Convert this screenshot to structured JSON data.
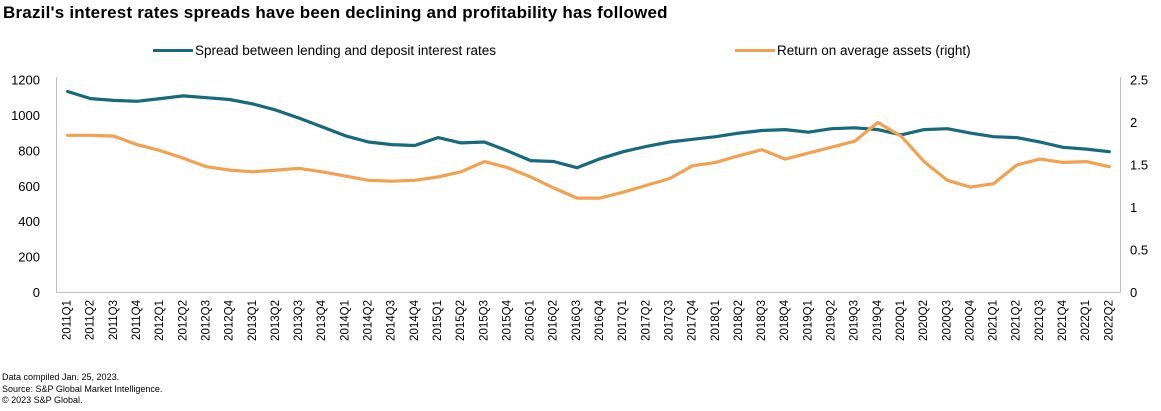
{
  "title": "Brazil's interest rates spreads have been declining and profitability has followed",
  "footer": {
    "line1": "Data compiled Jan. 25, 2023.",
    "line2": "Source: S&P Global Market Intelligence.",
    "line3": "© 2023 S&P Global."
  },
  "chart_data": {
    "type": "line",
    "categories": [
      "2011Q1",
      "2011Q2",
      "2011Q3",
      "2011Q4",
      "2012Q1",
      "2012Q2",
      "2012Q3",
      "2012Q4",
      "2013Q1",
      "2013Q2",
      "2013Q3",
      "2013Q4",
      "2014Q1",
      "2014Q2",
      "2014Q3",
      "2014Q4",
      "2015Q1",
      "2015Q2",
      "2015Q3",
      "2015Q4",
      "2016Q1",
      "2016Q2",
      "2016Q3",
      "2016Q4",
      "2017Q1",
      "2017Q2",
      "2017Q3",
      "2017Q4",
      "2018Q1",
      "2018Q2",
      "2018Q3",
      "2018Q4",
      "2019Q1",
      "2019Q2",
      "2019Q3",
      "2019Q4",
      "2020Q1",
      "2020Q2",
      "2020Q3",
      "2020Q4",
      "2021Q1",
      "2021Q2",
      "2021Q3",
      "2021Q4",
      "2022Q1",
      "2022Q2"
    ],
    "series": [
      {
        "name": "Spread between lending and deposit interest rates",
        "axis": "left",
        "color": "#176A7E",
        "values": [
          1135,
          1095,
          1085,
          1080,
          1095,
          1110,
          1100,
          1090,
          1065,
          1030,
          985,
          935,
          885,
          850,
          835,
          830,
          875,
          845,
          850,
          800,
          745,
          740,
          705,
          755,
          795,
          825,
          850,
          865,
          880,
          900,
          915,
          920,
          905,
          925,
          930,
          920,
          890,
          920,
          925,
          900,
          880,
          875,
          850,
          820,
          810,
          795
        ]
      },
      {
        "name": "Return on average assets (right)",
        "axis": "right",
        "color": "#F2A150",
        "values": [
          1.85,
          1.85,
          1.84,
          1.74,
          1.67,
          1.58,
          1.48,
          1.44,
          1.42,
          1.44,
          1.46,
          1.42,
          1.37,
          1.32,
          1.31,
          1.32,
          1.36,
          1.42,
          1.54,
          1.47,
          1.36,
          1.23,
          1.11,
          1.11,
          1.18,
          1.26,
          1.34,
          1.49,
          1.53,
          1.61,
          1.68,
          1.57,
          1.64,
          1.71,
          1.78,
          2.0,
          1.84,
          1.54,
          1.32,
          1.24,
          1.28,
          1.5,
          1.57,
          1.53,
          1.54,
          1.48
        ]
      }
    ],
    "axes": {
      "left": {
        "ticks": [
          0,
          200,
          400,
          600,
          800,
          1000,
          1200
        ],
        "range": [
          0,
          1200
        ]
      },
      "right": {
        "ticks": [
          0,
          0.5,
          1,
          1.5,
          2,
          2.5
        ],
        "tick_labels": [
          "0",
          "0.5",
          "1",
          "1.5",
          "2",
          "2.5"
        ],
        "range": [
          0,
          2.5
        ]
      }
    },
    "grid": false,
    "legend_position": "top",
    "axis_color": "#bfbfbf",
    "text_color": "#000000"
  }
}
